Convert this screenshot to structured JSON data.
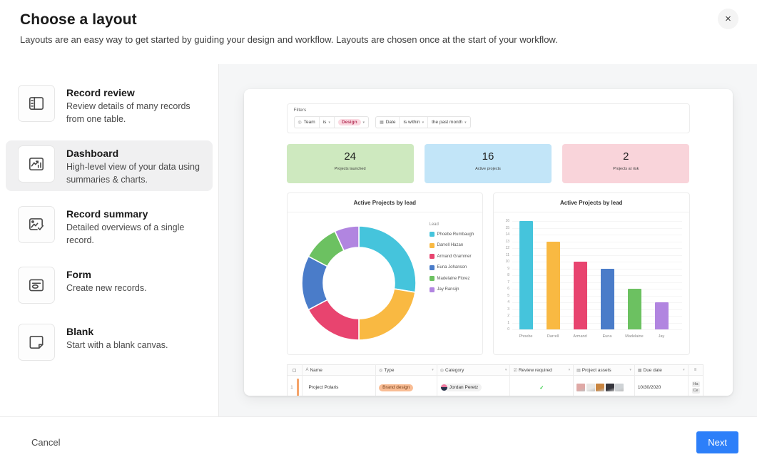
{
  "modal": {
    "title": "Choose a layout",
    "subtitle": "Layouts are an easy way to get started by guiding your design and workflow. Layouts are chosen once at the start of your workflow.",
    "close_icon": "×",
    "cancel_label": "Cancel",
    "next_label": "Next"
  },
  "colors": {
    "accent_blue": "#2d7ff9",
    "card_green": "#cee9bf",
    "card_blue": "#c2e5f8",
    "card_pink": "#f9d4da",
    "pill_pink_bg": "#fbd9e1",
    "pill_pink_text": "#b73a5e",
    "pill_orange_bg": "#f9bd95",
    "pill_orange_text": "#77421c",
    "check_green": "#20c933",
    "row_marker": "#f5a46a"
  },
  "layouts": [
    {
      "name": "Record review",
      "description": "Review details of many records from one table.",
      "selected": false
    },
    {
      "name": "Dashboard",
      "description": "High-level view of your data using summaries & charts.",
      "selected": true
    },
    {
      "name": "Record summary",
      "description": "Detailed overviews of a single record.",
      "selected": false
    },
    {
      "name": "Form",
      "description": "Create new records.",
      "selected": false
    },
    {
      "name": "Blank",
      "description": "Start with a blank canvas.",
      "selected": false
    }
  ],
  "preview": {
    "filters": {
      "label": "Filters",
      "groups": [
        {
          "field": "Team",
          "field_icon": "select-icon",
          "operator": "is",
          "value": "Design"
        },
        {
          "field": "Date",
          "field_icon": "calendar-icon",
          "operator": "is within",
          "value": "the past month"
        }
      ],
      "caret": "▾"
    },
    "summary_cards": [
      {
        "value": "24",
        "label": "Projects launched"
      },
      {
        "value": "16",
        "label": "Active projects"
      },
      {
        "value": "2",
        "label": "Projects at risk"
      }
    ],
    "table": {
      "columns": [
        {
          "icon": "checkbox",
          "label": ""
        },
        {
          "icon": "A",
          "label": "Name",
          "caret": false
        },
        {
          "icon": "◎",
          "label": "Type",
          "caret": true
        },
        {
          "icon": "◎",
          "label": "Category",
          "caret": true
        },
        {
          "icon": "☑",
          "label": "Review required",
          "caret": true
        },
        {
          "icon": "▤",
          "label": "Project assets",
          "caret": true
        },
        {
          "icon": "▦",
          "label": "Due date",
          "caret": true
        },
        {
          "icon": "≡",
          "label": ""
        }
      ],
      "row": {
        "num": "1",
        "name": "Project Polaris",
        "type": "Brand design",
        "category": "Jordan Peretz",
        "review_check": "✓",
        "asset_colors": [
          "#dfa9a6",
          "#e8e8e6",
          "#c98540",
          "#35353c",
          "#cfd3d6"
        ],
        "due_date": "10/30/2020",
        "linked": [
          "Ha",
          "Ce"
        ]
      }
    }
  },
  "chart_data": [
    {
      "type": "pie",
      "subtype": "donut",
      "title": "Active Projects by lead",
      "legend_title": "Lead",
      "legend_position": "right",
      "labels": [
        "Phoebe Rumbaugh",
        "Darrell Hazan",
        "Armand Grammer",
        "Euna Johanson",
        "Madelaine Florez",
        "Jay Ransijn"
      ],
      "values": [
        16,
        13,
        10,
        9,
        6,
        4
      ],
      "colors": [
        "#45c4dc",
        "#f9b942",
        "#e8446f",
        "#4a7cc9",
        "#6cc161",
        "#b185e0"
      ]
    },
    {
      "type": "bar",
      "title": "Active Projects by lead",
      "categories": [
        "Phoebe",
        "Darrell",
        "Armand",
        "Euna",
        "Madelaine",
        "Jay"
      ],
      "values": [
        16,
        13,
        10,
        9,
        6,
        4
      ],
      "colors": [
        "#45c4dc",
        "#f9b942",
        "#e8446f",
        "#4a7cc9",
        "#6cc161",
        "#b185e0"
      ],
      "ylim": [
        0,
        16
      ],
      "ytick_step": 1,
      "grid": true
    }
  ]
}
